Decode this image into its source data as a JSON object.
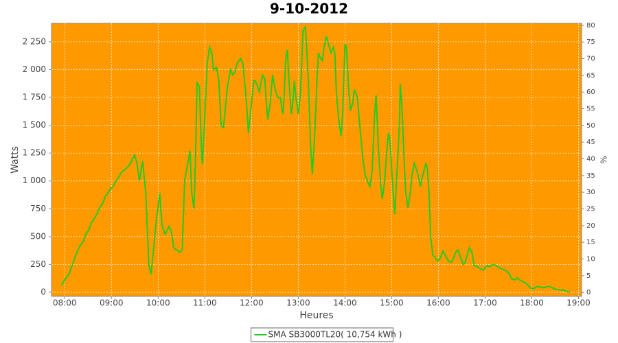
{
  "chart_data": {
    "type": "line",
    "title": "9-10-2012",
    "x_label": "Heures",
    "y_label": "Watts",
    "y2_label": "%",
    "x": [
      476,
      479,
      483,
      486,
      490,
      493,
      497,
      500,
      504,
      507,
      511,
      514,
      518,
      521,
      525,
      529,
      532,
      536,
      539,
      543,
      546,
      550,
      553,
      557,
      560,
      564,
      567,
      570,
      573,
      576,
      580,
      584,
      588,
      591,
      597,
      602,
      605,
      609,
      614,
      617,
      620,
      628,
      631,
      634,
      641,
      643,
      646,
      648,
      650,
      653,
      656,
      657,
      660,
      663,
      666,
      669,
      671,
      675,
      678,
      681,
      684,
      687,
      689,
      693,
      696,
      699,
      701,
      706,
      709,
      713,
      716,
      720,
      723,
      725,
      730,
      734,
      737,
      739,
      741,
      744,
      747,
      751,
      754,
      757,
      760,
      761,
      764,
      766,
      768,
      771,
      773,
      775,
      777,
      780,
      783,
      786,
      789,
      790,
      793,
      796,
      798,
      801,
      804,
      806,
      809,
      811,
      813,
      816,
      820,
      822,
      825,
      827,
      829,
      832,
      835,
      837,
      840,
      842,
      845,
      847,
      850,
      852,
      856,
      859,
      863,
      866,
      870,
      872,
      875,
      878,
      880,
      883,
      886,
      888,
      891,
      894,
      896,
      898,
      901,
      904,
      907,
      910,
      911,
      913,
      916,
      918,
      921,
      924,
      926,
      929,
      932,
      934,
      937,
      940,
      944,
      946,
      948,
      950,
      953,
      955,
      959,
      962,
      966,
      969,
      973,
      977,
      979,
      983,
      985,
      988,
      992,
      994,
      998,
      1000,
      1003,
      1006,
      1010,
      1014,
      1018,
      1022,
      1026,
      1030,
      1034,
      1038,
      1045,
      1051,
      1054,
      1059,
      1061,
      1067,
      1073,
      1078,
      1082,
      1086,
      1090,
      1095,
      1100,
      1104,
      1109,
      1116,
      1120,
      1126,
      1129
    ],
    "series": [
      {
        "name": "SMA SB3000TL20( 10,754 kWh )",
        "color": "#22cc22",
        "values": [
          60,
          100,
          140,
          170,
          250,
          310,
          380,
          420,
          460,
          520,
          560,
          620,
          660,
          700,
          760,
          800,
          860,
          900,
          930,
          960,
          1000,
          1040,
          1080,
          1100,
          1120,
          1150,
          1200,
          1230,
          1150,
          1000,
          1180,
          900,
          250,
          160,
          600,
          890,
          600,
          520,
          590,
          550,
          400,
          360,
          380,
          1000,
          1270,
          900,
          750,
          1200,
          1880,
          1850,
          1200,
          1150,
          1600,
          2050,
          2200,
          2150,
          2000,
          2020,
          1900,
          1500,
          1480,
          1700,
          1850,
          2000,
          1950,
          1980,
          2050,
          2100,
          2050,
          1750,
          1430,
          1700,
          1900,
          1900,
          1800,
          1950,
          1920,
          1700,
          1550,
          1700,
          1950,
          1800,
          1750,
          1750,
          1600,
          1650,
          2100,
          2180,
          1900,
          1600,
          1700,
          1900,
          1750,
          1600,
          1800,
          2350,
          2380,
          2300,
          1900,
          1300,
          1060,
          1400,
          1900,
          2150,
          2100,
          2080,
          2200,
          2300,
          2200,
          2150,
          2200,
          2150,
          1800,
          1550,
          1400,
          1600,
          2230,
          2200,
          1800,
          1630,
          1700,
          1820,
          1750,
          1500,
          1200,
          1050,
          980,
          950,
          1100,
          1600,
          1770,
          1300,
          950,
          840,
          1000,
          1300,
          1430,
          1350,
          1000,
          700,
          1100,
          1500,
          1870,
          1700,
          1200,
          900,
          760,
          900,
          1050,
          1160,
          1100,
          1050,
          950,
          1050,
          1160,
          1100,
          900,
          500,
          330,
          320,
          280,
          300,
          370,
          330,
          280,
          270,
          300,
          370,
          380,
          320,
          250,
          260,
          360,
          400,
          360,
          240,
          230,
          210,
          200,
          240,
          230,
          250,
          240,
          220,
          200,
          170,
          120,
          110,
          130,
          100,
          80,
          40,
          30,
          50,
          50,
          40,
          50,
          50,
          30,
          20,
          20,
          5,
          5
        ]
      }
    ],
    "xlim": [
      463,
      1144
    ],
    "xticks": [
      {
        "value": 480,
        "label": "08:00"
      },
      {
        "value": 540,
        "label": "09:00"
      },
      {
        "value": 600,
        "label": "10:00"
      },
      {
        "value": 660,
        "label": "11:00"
      },
      {
        "value": 720,
        "label": "12:00"
      },
      {
        "value": 780,
        "label": "13:00"
      },
      {
        "value": 840,
        "label": "14:00"
      },
      {
        "value": 900,
        "label": "15:00"
      },
      {
        "value": 960,
        "label": "16:00"
      },
      {
        "value": 1020,
        "label": "17:00"
      },
      {
        "value": 1080,
        "label": "18:00"
      },
      {
        "value": 1140,
        "label": "19:00"
      }
    ],
    "ylim": [
      -37,
      2416
    ],
    "yticks": [
      0,
      250,
      500,
      750,
      {
        "value": 1000,
        "label": "1 000"
      },
      {
        "value": 1250,
        "label": "1 250"
      },
      {
        "value": 1500,
        "label": "1 500"
      },
      {
        "value": 1750,
        "label": "1 750"
      },
      {
        "value": 2000,
        "label": "2 000"
      },
      {
        "value": 2250,
        "label": "2 250"
      }
    ],
    "y2lim": [
      -1.2,
      80.6
    ],
    "y2ticks": [
      0,
      5,
      10,
      15,
      20,
      25,
      30,
      35,
      40,
      45,
      50,
      55,
      60,
      65,
      70,
      75,
      80
    ],
    "grid": true,
    "plot_background": "#ff9900",
    "legend": "bottom"
  }
}
